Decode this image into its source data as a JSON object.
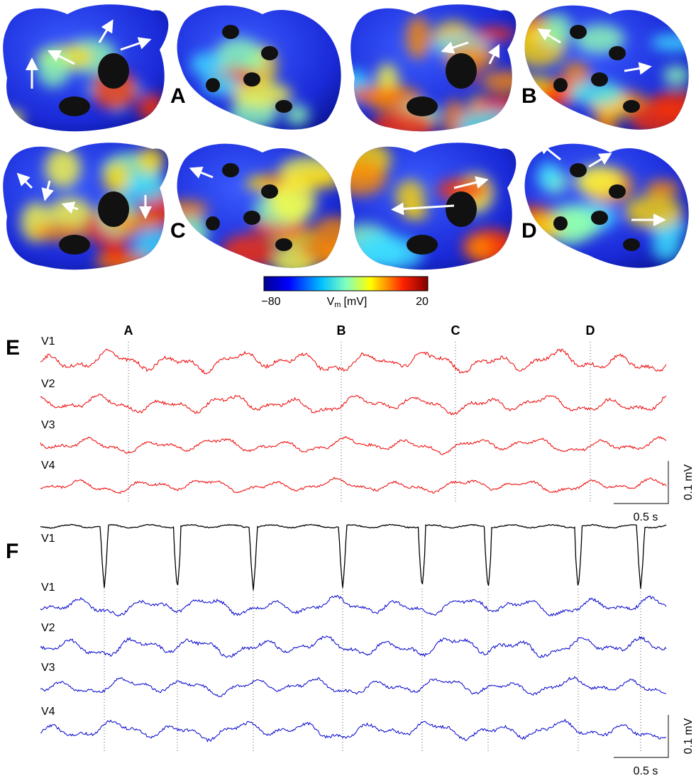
{
  "panels": [
    {
      "label": "A"
    },
    {
      "label": "B"
    },
    {
      "label": "C"
    },
    {
      "label": "D"
    }
  ],
  "colorbar": {
    "min_label": "−80",
    "quantity": "V",
    "subscript": "m",
    "unit": "[mV]",
    "max_label": "20"
  },
  "panel_e": {
    "label": "E",
    "markers": [
      "A",
      "B",
      "C",
      "D"
    ],
    "leads": [
      "V1",
      "V2",
      "V3",
      "V4"
    ],
    "scale_amplitude": "0.1 mV",
    "scale_time": "0.5 s"
  },
  "panel_f": {
    "label": "F",
    "reference_lead": "V1",
    "leads": [
      "V1",
      "V2",
      "V3",
      "V4"
    ],
    "scale_amplitude": "0.1 mV",
    "scale_time": "0.5 s"
  }
}
